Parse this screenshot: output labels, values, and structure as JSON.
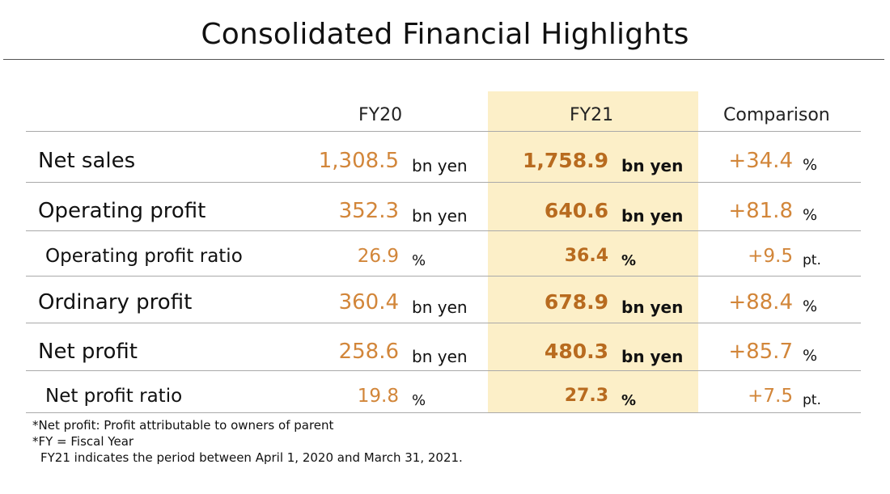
{
  "title": "Consolidated Financial Highlights",
  "headers": {
    "fy20": "FY20",
    "fy21": "FY21",
    "comparison": "Comparison"
  },
  "rows": [
    {
      "label": "Net sales",
      "fy20_value": "1,308.5",
      "fy20_unit": "bn yen",
      "fy21_value": "1,758.9",
      "fy21_unit": "bn yen",
      "cmp_value": "+34.4",
      "cmp_unit": "%"
    },
    {
      "label": "Operating profit",
      "fy20_value": "352.3",
      "fy20_unit": "bn yen",
      "fy21_value": "640.6",
      "fy21_unit": "bn yen",
      "cmp_value": "+81.8",
      "cmp_unit": "%"
    },
    {
      "label": "Operating profit ratio",
      "fy20_value": "26.9",
      "fy20_unit": "%",
      "fy21_value": "36.4",
      "fy21_unit": "%",
      "cmp_value": "+9.5",
      "cmp_unit": "pt."
    },
    {
      "label": "Ordinary profit",
      "fy20_value": "360.4",
      "fy20_unit": "bn yen",
      "fy21_value": "678.9",
      "fy21_unit": "bn yen",
      "cmp_value": "+88.4",
      "cmp_unit": "%"
    },
    {
      "label": "Net profit",
      "fy20_value": "258.6",
      "fy20_unit": "bn yen",
      "fy21_value": "480.3",
      "fy21_unit": "bn yen",
      "cmp_value": "+85.7",
      "cmp_unit": "%"
    },
    {
      "label": "Net profit ratio",
      "fy20_value": "19.8",
      "fy20_unit": "%",
      "fy21_value": "27.3",
      "fy21_unit": "%",
      "cmp_value": "+7.5",
      "cmp_unit": "pt."
    }
  ],
  "notes": [
    "*Net profit: Profit attributable to owners of parent",
    "*FY = Fiscal Year",
    "FY21 indicates the period between April 1, 2020 and March 31, 2021."
  ],
  "colors": {
    "value_orange": "#d2863a",
    "fy21_value": "#b86b1f",
    "highlight_column": "#fcefc8"
  }
}
